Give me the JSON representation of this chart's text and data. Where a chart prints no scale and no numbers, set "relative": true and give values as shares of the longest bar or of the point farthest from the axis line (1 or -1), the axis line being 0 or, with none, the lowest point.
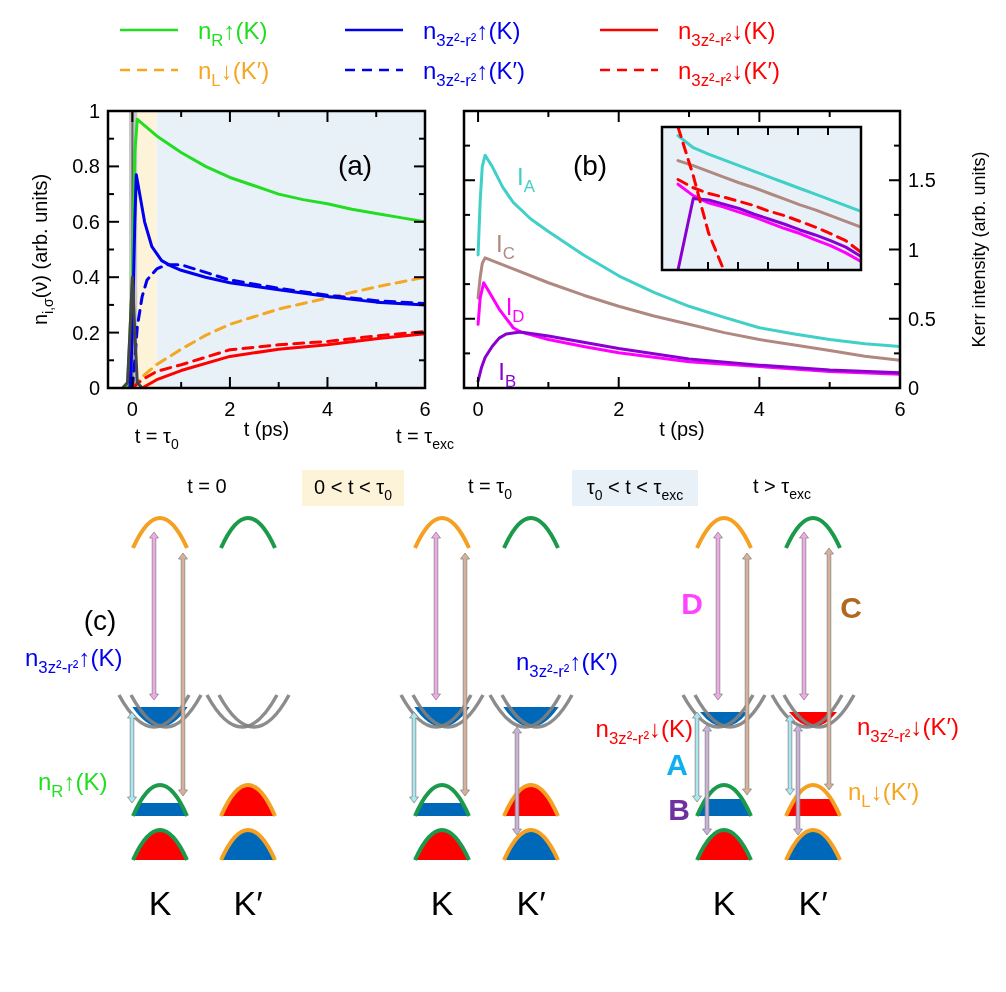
{
  "chart_data": [
    {
      "type": "line",
      "title": "(a)",
      "xlabel": "t   (ps)",
      "ylabel": "n$_{i,σ}$(ν)  (arb. units)",
      "xlim": [
        -0.5,
        6
      ],
      "ylim": [
        0,
        1
      ],
      "xticks": [
        0,
        {
          "value": 1,
          "label": null
        },
        2,
        {
          "value": 3,
          "label": null
        },
        4,
        {
          "value": 5,
          "label": null
        },
        6
      ],
      "yticks": [
        0,
        {
          "value": 0.1,
          "label": null
        },
        0.2,
        {
          "value": 0.3,
          "label": null
        },
        0.4,
        {
          "value": 0.5,
          "label": null
        },
        0.6,
        {
          "value": 0.7,
          "label": null
        },
        0.8,
        {
          "value": 0.9,
          "label": null
        },
        1
      ],
      "bands": [
        {
          "axis": "x",
          "from": 0.1,
          "to": 0.5,
          "color": "#fdf3d9"
        },
        {
          "axis": "x",
          "from": 0.5,
          "to": 6,
          "color": "#e9f1f8"
        },
        {
          "axis": "x",
          "from": -0.07,
          "to": 0.1,
          "color": "#c8c8c8"
        }
      ],
      "ref_lines": [
        {
          "axis": "x",
          "value": 0,
          "color": "#666666"
        }
      ],
      "annotations": [
        {
          "text": "t = τ$_{0}$",
          "x": 0.5,
          "y": 0
        },
        {
          "text": "t = τ$_{exc}$",
          "x": 6,
          "y": 0
        }
      ],
      "legend": "top",
      "series": [
        {
          "name": "n$_{R}$↑(K)",
          "color": "#22dd22",
          "line_style": "solid",
          "x": [
            -0.1,
            0,
            0.05,
            0.1,
            0.3,
            0.5,
            1,
            1.5,
            2,
            2.5,
            3,
            3.5,
            4,
            4.5,
            5,
            5.5,
            6
          ],
          "values": [
            0,
            0.4,
            0.85,
            0.97,
            0.94,
            0.91,
            0.85,
            0.8,
            0.76,
            0.73,
            0.7,
            0.68,
            0.665,
            0.645,
            0.63,
            0.615,
            0.6
          ]
        },
        {
          "name": "n$_{L}$↓(K′)",
          "color": "#f5a623",
          "line_style": "dashed",
          "x": [
            0,
            0.2,
            0.5,
            1,
            1.5,
            2,
            3,
            4,
            5,
            6
          ],
          "values": [
            0,
            0.04,
            0.085,
            0.14,
            0.19,
            0.23,
            0.285,
            0.325,
            0.365,
            0.4
          ]
        },
        {
          "name": "n$_{3z²-r²}$↑(K)",
          "color": "#0000ee",
          "line_style": "solid",
          "x": [
            -0.05,
            0,
            0.05,
            0.08,
            0.15,
            0.25,
            0.4,
            0.6,
            0.8,
            1,
            1.5,
            2,
            3,
            4,
            5,
            6
          ],
          "values": [
            0,
            0.2,
            0.6,
            0.77,
            0.7,
            0.6,
            0.51,
            0.46,
            0.44,
            0.425,
            0.4,
            0.38,
            0.355,
            0.33,
            0.31,
            0.3
          ]
        },
        {
          "name": "n$_{3z²-r²}$↑(K′)",
          "color": "#0000ee",
          "line_style": "dashed",
          "x": [
            0,
            0.05,
            0.1,
            0.2,
            0.3,
            0.5,
            0.7,
            1,
            2,
            3,
            4,
            5,
            6
          ],
          "values": [
            0,
            0.1,
            0.22,
            0.33,
            0.39,
            0.43,
            0.445,
            0.445,
            0.39,
            0.36,
            0.335,
            0.315,
            0.305
          ]
        },
        {
          "name": "n$_{3z²-r²}$↓(K)",
          "color": "#ff0000",
          "line_style": "solid",
          "x": [
            0.2,
            0.5,
            1,
            2,
            3,
            4,
            5,
            6
          ],
          "values": [
            0,
            0.03,
            0.063,
            0.114,
            0.14,
            0.156,
            0.178,
            0.196
          ]
        },
        {
          "name": "n$_{3z²-r²}$↓(K′)",
          "color": "#ff0000",
          "line_style": "dashed",
          "x": [
            0,
            0.2,
            0.5,
            1,
            2,
            3,
            4,
            5,
            6
          ],
          "values": [
            0,
            0.03,
            0.06,
            0.084,
            0.138,
            0.156,
            0.168,
            0.188,
            0.204
          ]
        },
        {
          "color": "#444444",
          "line_style": "solid",
          "x": [
            -0.2,
            -0.1,
            -0.05,
            0,
            0.05,
            0.1,
            0.2
          ],
          "values": [
            0,
            0.02,
            0.2,
            0.4,
            0.2,
            0.02,
            0
          ]
        }
      ]
    },
    {
      "type": "line",
      "title": "(b)",
      "xlabel": "t   (ps)",
      "y2label": "Kerr intensity (arb. units)",
      "xlim": [
        -0.2,
        6
      ],
      "y2lim": [
        0,
        2
      ],
      "xticks": [
        0,
        {
          "value": 1,
          "label": null
        },
        2,
        {
          "value": 3,
          "label": null
        },
        4,
        {
          "value": 5,
          "label": null
        },
        6
      ],
      "y2ticks": [
        0,
        {
          "value": 0.25,
          "label": null
        },
        0.5,
        {
          "value": 0.75,
          "label": null
        },
        1,
        {
          "value": 1.25,
          "label": null
        },
        1.5,
        {
          "value": 1.75,
          "label": null
        }
      ],
      "series": [
        {
          "name": "I$_{A}$",
          "color": "#40d0c8",
          "axis": "y2",
          "x": [
            0,
            0.03,
            0.06,
            0.1,
            0.2,
            0.35,
            0.5,
            0.75,
            1,
            1.5,
            2,
            2.5,
            3,
            3.5,
            4,
            4.5,
            5,
            5.5,
            6
          ],
          "values": [
            0.96,
            1.35,
            1.6,
            1.68,
            1.6,
            1.45,
            1.34,
            1.22,
            1.13,
            0.96,
            0.81,
            0.69,
            0.59,
            0.51,
            0.435,
            0.39,
            0.35,
            0.32,
            0.3
          ]
        },
        {
          "name": "I$_{C}$",
          "color": "#b08880",
          "axis": "y2",
          "x": [
            0,
            0.03,
            0.06,
            0.1,
            0.2,
            0.5,
            1,
            1.5,
            2,
            2.5,
            3,
            3.5,
            4,
            4.5,
            5,
            5.5,
            6
          ],
          "values": [
            0.65,
            0.8,
            0.9,
            0.94,
            0.92,
            0.86,
            0.76,
            0.67,
            0.59,
            0.52,
            0.46,
            0.4,
            0.35,
            0.31,
            0.27,
            0.23,
            0.2
          ]
        },
        {
          "name": "I$_{D}$",
          "color": "#ff00ff",
          "axis": "y2",
          "x": [
            0,
            0.03,
            0.08,
            0.15,
            0.3,
            0.5,
            0.6,
            1,
            1.5,
            2,
            3,
            4,
            5,
            6
          ],
          "values": [
            0.46,
            0.65,
            0.76,
            0.7,
            0.57,
            0.435,
            0.405,
            0.35,
            0.3,
            0.255,
            0.19,
            0.155,
            0.12,
            0.1
          ]
        },
        {
          "name": "I$_{B}$",
          "color": "#8a00d0",
          "axis": "y2",
          "x": [
            0,
            0.05,
            0.1,
            0.2,
            0.3,
            0.4,
            0.6,
            0.8,
            1,
            1.5,
            2,
            3,
            4,
            5,
            6
          ],
          "values": [
            0.05,
            0.15,
            0.22,
            0.3,
            0.36,
            0.39,
            0.405,
            0.39,
            0.375,
            0.33,
            0.285,
            0.21,
            0.165,
            0.13,
            0.11
          ]
        }
      ]
    },
    {
      "type": "line",
      "relative": true,
      "categories": [
        null,
        null,
        null,
        null,
        null,
        null,
        null,
        null,
        null,
        null,
        null,
        null,
        null
      ],
      "series": [
        {
          "color": "#40d0c8",
          "values": [
            0.94,
            0.855,
            0.81,
            0.77,
            0.73,
            0.69,
            0.65,
            0.61,
            0.57,
            0.53,
            0.49,
            0.45,
            0.41
          ]
        },
        {
          "color": "#b08880",
          "values": [
            0.765,
            0.73,
            0.69,
            0.65,
            0.61,
            0.575,
            0.535,
            0.495,
            0.455,
            0.42,
            0.38,
            0.34,
            0.3
          ]
        },
        {
          "color": "#ff00ff",
          "values": [
            0.6,
            0.52,
            0.47,
            0.44,
            0.405,
            0.37,
            0.33,
            0.29,
            0.255,
            0.21,
            0.17,
            0.12,
            0.06
          ]
        },
        {
          "color": "#8a00d0",
          "values": [
            0,
            0.5,
            0.49,
            0.46,
            0.43,
            0.39,
            0.355,
            0.32,
            0.28,
            0.245,
            0.205,
            0.16,
            0.095
          ]
        },
        {
          "color": "#ff0000",
          "line_style": "dashed",
          "values": [
            0.633,
            0.575,
            0.535,
            0.51,
            0.48,
            0.45,
            0.41,
            0.38,
            0.34,
            0.3,
            0.255,
            0.205,
            0.125
          ]
        },
        {
          "color": "#ff0000",
          "line_style": "dashed",
          "values": [
            1,
            0.66,
            0.26,
            0,
            null,
            null,
            null,
            null,
            null,
            null,
            null,
            null,
            null
          ]
        }
      ]
    },
    {
      "type": "other",
      "title": "(c)",
      "annotations": [
        "t = 0",
        "0 < t < τ$_{0}$",
        "t = τ$_{0}$",
        "τ$_{0}$ < t < τ$_{exc}$",
        "t > τ$_{exc}$",
        "n$_{3z²-r²}$↑(K)",
        "n$_{R}$↑(K)",
        "n$_{3z²-r²}$↑(K′)",
        "n$_{3z²-r²}$↓(K)",
        "n$_{3z²-r²}$↓(K′)",
        "n$_{L}$↓(K′)",
        "D",
        "C",
        "A",
        "B",
        "K",
        "K′",
        "K",
        "K′",
        "K",
        "K′"
      ]
    }
  ]
}
